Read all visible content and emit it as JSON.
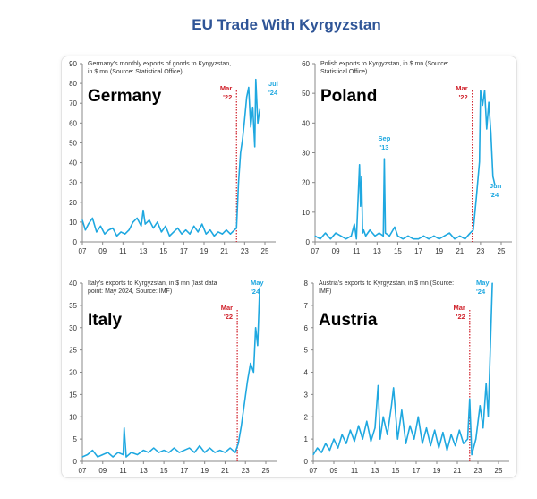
{
  "title": "EU Trade With Kyrgyzstan",
  "chart_data": [
    {
      "type": "line",
      "name": "Germany",
      "label": "Germany",
      "note": "Germany's monthly exports of goods to Kyrgyzstan, in $ mn (Source: Statistical Office)",
      "ylim": [
        0,
        90
      ],
      "yticks": [
        0,
        10,
        20,
        30,
        40,
        50,
        60,
        70,
        80,
        90
      ],
      "xticks": [
        "07",
        "09",
        "11",
        "13",
        "15",
        "17",
        "19",
        "21",
        "23",
        "25"
      ],
      "xlim": [
        2007,
        2025
      ],
      "marker": {
        "x": 2022.2,
        "label": "Mar '22"
      },
      "end_label": "Jul '24",
      "x": [
        2007,
        2007.3,
        2007.6,
        2008,
        2008.4,
        2008.8,
        2009.2,
        2009.6,
        2010,
        2010.4,
        2010.8,
        2011.2,
        2011.6,
        2012,
        2012.4,
        2012.8,
        2013,
        2013.2,
        2013.6,
        2014,
        2014.4,
        2014.8,
        2015.2,
        2015.6,
        2016,
        2016.4,
        2016.8,
        2017.2,
        2017.6,
        2018,
        2018.4,
        2018.8,
        2019.2,
        2019.6,
        2020,
        2020.4,
        2020.8,
        2021.2,
        2021.6,
        2022,
        2022.2,
        2022.4,
        2022.6,
        2022.8,
        2023,
        2023.2,
        2023.4,
        2023.6,
        2023.8,
        2024,
        2024.1,
        2024.3,
        2024.5
      ],
      "y": [
        11,
        6,
        9,
        12,
        5,
        8,
        4,
        6,
        7,
        3,
        5,
        4,
        6,
        10,
        12,
        8,
        16,
        9,
        11,
        7,
        10,
        5,
        8,
        3,
        5,
        7,
        4,
        6,
        4,
        8,
        5,
        9,
        4,
        6,
        3,
        5,
        4,
        6,
        4,
        6,
        7,
        30,
        45,
        52,
        62,
        73,
        78,
        58,
        68,
        48,
        82,
        60,
        67
      ]
    },
    {
      "type": "line",
      "name": "Poland",
      "label": "Poland",
      "note": "Polish exports to Kyrgyzstan, in $ mn (Source: Statistical Office)",
      "ylim": [
        0,
        60
      ],
      "yticks": [
        0,
        10,
        20,
        30,
        40,
        50,
        60
      ],
      "xticks": [
        "07",
        "09",
        "11",
        "13",
        "15",
        "17",
        "19",
        "21",
        "23",
        "25"
      ],
      "xlim": [
        2007,
        2025
      ],
      "marker": {
        "x": 2022.2,
        "label": "Mar '22"
      },
      "end_label": "Jun '24",
      "peak_label": "Sep '13",
      "x": [
        2007,
        2007.5,
        2008,
        2008.5,
        2009,
        2009.5,
        2010,
        2010.5,
        2010.8,
        2011,
        2011.3,
        2011.4,
        2011.5,
        2011.6,
        2011.7,
        2011.9,
        2012.3,
        2012.8,
        2013.2,
        2013.6,
        2013.7,
        2013.8,
        2014.2,
        2014.7,
        2015,
        2015.5,
        2016,
        2016.5,
        2017,
        2017.5,
        2018,
        2018.5,
        2019,
        2019.5,
        2020,
        2020.5,
        2021,
        2021.5,
        2022,
        2022.3,
        2022.6,
        2022.9,
        2023,
        2023.2,
        2023.4,
        2023.6,
        2023.8,
        2024,
        2024.2,
        2024.4
      ],
      "y": [
        2,
        1,
        3,
        1,
        3,
        2,
        1,
        2,
        6,
        1,
        26,
        12,
        22,
        3,
        4,
        2,
        4,
        2,
        3,
        2,
        28,
        3,
        2,
        5,
        2,
        1,
        2,
        1,
        1,
        2,
        1,
        2,
        1,
        2,
        3,
        1,
        2,
        1,
        3,
        4,
        15,
        27,
        51,
        46,
        51,
        38,
        47,
        37,
        22,
        19
      ]
    },
    {
      "type": "line",
      "name": "Italy",
      "label": "Italy",
      "note": "Italy's exports to Kyrgyzstan, in $ mn (last data point: May 2024, Source: IMF)",
      "ylim": [
        0,
        40
      ],
      "yticks": [
        0,
        5,
        10,
        15,
        20,
        25,
        30,
        35,
        40
      ],
      "xticks": [
        "07",
        "09",
        "11",
        "13",
        "15",
        "17",
        "19",
        "21",
        "23",
        "25"
      ],
      "xlim": [
        2007,
        2025
      ],
      "marker": {
        "x": 2022.2,
        "label": "Mar '22"
      },
      "end_label": "May '24",
      "x": [
        2007,
        2007.5,
        2008,
        2008.5,
        2009,
        2009.5,
        2010,
        2010.5,
        2011,
        2011.1,
        2011.3,
        2011.8,
        2012.4,
        2013,
        2013.5,
        2014,
        2014.5,
        2015,
        2015.5,
        2016,
        2016.5,
        2017,
        2017.5,
        2018,
        2018.5,
        2019,
        2019.5,
        2020,
        2020.5,
        2021,
        2021.5,
        2022,
        2022.3,
        2022.6,
        2022.9,
        2023.2,
        2023.5,
        2023.8,
        2024,
        2024.2,
        2024.4
      ],
      "y": [
        1,
        1.5,
        2.5,
        1,
        1.5,
        2,
        1,
        2,
        1.5,
        7.5,
        1,
        2,
        1.5,
        2.5,
        2,
        3,
        2,
        2.5,
        2,
        3,
        2,
        2.5,
        3,
        2,
        3.5,
        2,
        3,
        2,
        2.5,
        2,
        3,
        2,
        4,
        8,
        13,
        18,
        22,
        20,
        30,
        26,
        39
      ]
    },
    {
      "type": "line",
      "name": "Austria",
      "label": "Austria",
      "note": "Austria's exports to Kyrgyzstan, in $ mn (Source: IMF)",
      "ylim": [
        0,
        8
      ],
      "yticks": [
        0,
        1,
        2,
        3,
        4,
        5,
        6,
        7,
        8
      ],
      "xticks": [
        "07",
        "09",
        "11",
        "13",
        "15",
        "17",
        "19",
        "21",
        "23",
        "25"
      ],
      "xlim": [
        2007,
        2025
      ],
      "marker": {
        "x": 2022.2,
        "label": "Mar '22"
      },
      "end_label": "May '24",
      "x": [
        2007,
        2007.4,
        2007.8,
        2008.2,
        2008.6,
        2009,
        2009.4,
        2009.8,
        2010.2,
        2010.6,
        2011,
        2011.4,
        2011.8,
        2012.2,
        2012.6,
        2013,
        2013.3,
        2013.5,
        2013.8,
        2014.2,
        2014.6,
        2014.8,
        2015.2,
        2015.6,
        2016,
        2016.4,
        2016.8,
        2017.2,
        2017.6,
        2018,
        2018.4,
        2018.8,
        2019.2,
        2019.6,
        2020,
        2020.4,
        2020.8,
        2021.2,
        2021.6,
        2022,
        2022.2,
        2022.4,
        2022.8,
        2023.2,
        2023.5,
        2023.8,
        2024,
        2024.2,
        2024.4
      ],
      "y": [
        0.3,
        0.6,
        0.4,
        0.8,
        0.5,
        1.0,
        0.6,
        1.2,
        0.8,
        1.4,
        0.9,
        1.6,
        1.0,
        1.8,
        0.9,
        1.5,
        3.4,
        1.0,
        2.0,
        1.2,
        2.5,
        3.3,
        1.0,
        2.3,
        0.8,
        1.6,
        1.0,
        2.0,
        0.8,
        1.5,
        0.7,
        1.4,
        0.6,
        1.3,
        0.5,
        1.2,
        0.7,
        1.4,
        0.8,
        1.0,
        2.8,
        0.3,
        1.0,
        2.5,
        1.5,
        3.5,
        2.0,
        5.0,
        8.0
      ]
    }
  ]
}
